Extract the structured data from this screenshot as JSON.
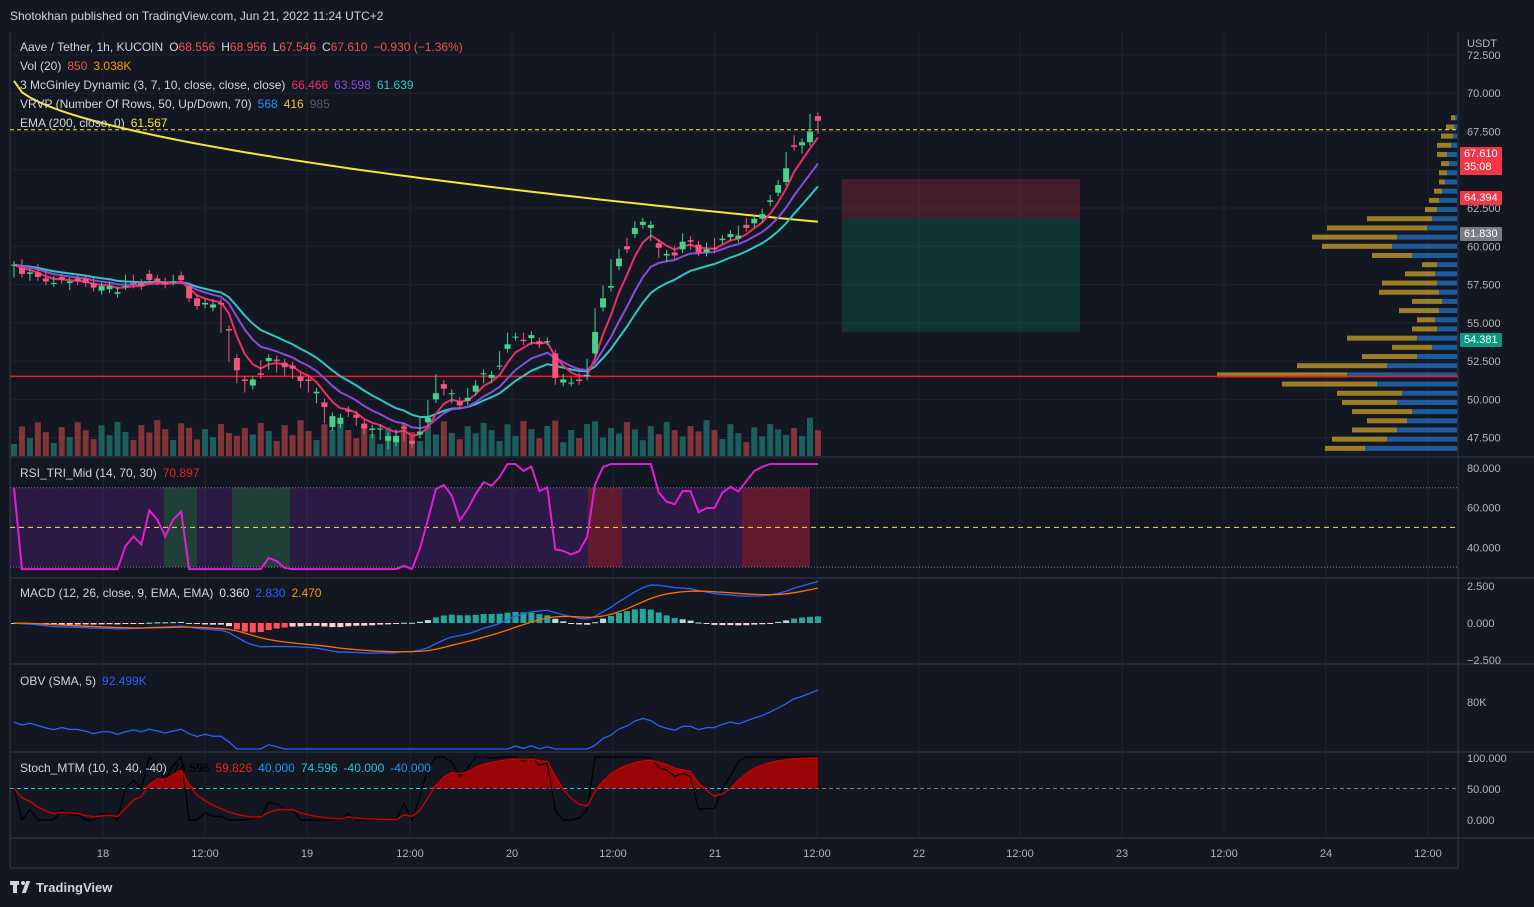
{
  "header": {
    "published": "Shotokhan published on TradingView.com, Jun 21, 2022 11:24 UTC+2"
  },
  "footer": {
    "brand": "TradingView"
  },
  "legend": {
    "symbol": {
      "name": "Aave / Tether, 1h, KUCOIN",
      "o_label": "O",
      "o": "68.556",
      "h_label": "H",
      "h": "68.956",
      "l_label": "L",
      "l": "67.546",
      "c_label": "C",
      "c": "67.610",
      "change": "−0.930 (−1.36%)"
    },
    "vol": {
      "name": "Vol (20)",
      "v1": "850",
      "v2": "3.038K"
    },
    "mcginley": {
      "name": "3 McGinley Dynamic (3, 7, 10, close, close, close)",
      "v1": "66.466",
      "v2": "63.598",
      "v3": "61.639"
    },
    "vrvp": {
      "name": "VRVP (Number Of Rows, 50, Up/Down, 70)",
      "v1": "568",
      "v2": "416",
      "v3": "985"
    },
    "ema": {
      "name": "EMA (200, close, 0)",
      "v1": "61.567"
    },
    "rsi": {
      "name": "RSI_TRI_Mid (14, 70, 30)",
      "v1": "70.897"
    },
    "macd": {
      "name": "MACD (12, 26, close, 9, EMA, EMA)",
      "v1": "0.360",
      "v2": "2.830",
      "v3": "2.470"
    },
    "obv": {
      "name": "OBV (SMA, 5)",
      "v1": "92.499K"
    },
    "stoch": {
      "name": "Stoch_MTM (10, 3, 40, -40)",
      "v1": "74.596",
      "v2": "59.826",
      "v3": "40.000",
      "v4": "74.596",
      "v5": "-40.000",
      "v6": "-40.000"
    }
  },
  "price_badges": {
    "last": "67.610",
    "countdown": "35:08",
    "stop": "64.394",
    "entry": "61.830",
    "target": "54.381"
  },
  "colors": {
    "bg": "#131722",
    "up": "#26a69a",
    "down": "#ef5350",
    "ema": "#f5e63d",
    "mg1": "#ec2d68",
    "mg2": "#8a4bdc",
    "mg3": "#2fc6c8",
    "support": "#f01f1f",
    "rsi": "#e01fd4",
    "macd": "#2962ff",
    "signal": "#ff6d00",
    "obv": "#2962ff"
  },
  "chart_data": {
    "type": "candlestick",
    "price_axis": {
      "unit": "USDT",
      "ticks": [
        "72.500",
        "70.000",
        "67.500",
        "65.000",
        "62.500",
        "60.000",
        "57.500",
        "55.000",
        "52.500",
        "50.000",
        "47.500"
      ],
      "range": [
        46.3,
        74.0
      ]
    },
    "time_axis": {
      "labels": [
        "18",
        "12:00",
        "19",
        "12:00",
        "20",
        "12:00",
        "21",
        "12:00",
        "22",
        "12:00",
        "23",
        "12:00",
        "24",
        "12:00"
      ]
    },
    "support_level": 51.5,
    "current_price": 67.61,
    "position": {
      "type": "short",
      "entry": 61.83,
      "stop": 64.394,
      "target": 54.381
    },
    "candles": [
      [
        58.8,
        58.8,
        58.2
      ],
      [
        58.6,
        58.2,
        58.9
      ],
      [
        58.2,
        58.3,
        58.0
      ],
      [
        58.3,
        58.0,
        58.6
      ],
      [
        57.9,
        57.7,
        58.2
      ],
      [
        57.6,
        57.6,
        57.8
      ],
      [
        58.0,
        57.8,
        57.9
      ],
      [
        57.6,
        57.7,
        57.4
      ],
      [
        57.9,
        57.7,
        57.8
      ],
      [
        57.9,
        57.6,
        57.9
      ],
      [
        57.6,
        57.3,
        57.7
      ],
      [
        57.1,
        57.4,
        57.3
      ],
      [
        57.2,
        57.4,
        57.3
      ],
      [
        56.9,
        57.0,
        57.1
      ],
      [
        57.4,
        57.4,
        57.9
      ],
      [
        57.6,
        57.5,
        57.9
      ],
      [
        57.6,
        57.4,
        57.5
      ],
      [
        58.2,
        57.8,
        57.9
      ],
      [
        57.9,
        57.7,
        57.7
      ],
      [
        57.7,
        57.5,
        57.6
      ],
      [
        57.7,
        57.7,
        57.9
      ],
      [
        58.1,
        57.8,
        58.1
      ],
      [
        57.4,
        56.6,
        56.9
      ],
      [
        56.6,
        56.1,
        56.3
      ],
      [
        56.2,
        56.3,
        56.2
      ],
      [
        56.0,
        56.2,
        56.3
      ],
      [
        56.3,
        56.2,
        54.6
      ],
      [
        54.6,
        54.5,
        52.7
      ],
      [
        52.7,
        51.9,
        51.3
      ],
      [
        51.3,
        51.2,
        50.7
      ],
      [
        50.9,
        51.3,
        50.9
      ],
      [
        51.7,
        51.6,
        52.3
      ],
      [
        52.5,
        52.7,
        52.2
      ],
      [
        52.6,
        52.5,
        52.0
      ],
      [
        52.4,
        52.1,
        51.8
      ],
      [
        52.2,
        52.0,
        51.6
      ],
      [
        51.5,
        51.2,
        51.0
      ],
      [
        51.3,
        51.2,
        50.7
      ],
      [
        50.4,
        50.5,
        50.0
      ],
      [
        49.8,
        49.5,
        48.7
      ],
      [
        48.2,
        48.9,
        48.3
      ],
      [
        48.4,
        48.8,
        48.7
      ],
      [
        49.3,
        49.2,
        49.1
      ],
      [
        49.0,
        48.8,
        48.5
      ],
      [
        48.4,
        48.1,
        48.0
      ],
      [
        48.0,
        48.1,
        47.7
      ],
      [
        48.1,
        48.1,
        47.6
      ],
      [
        47.3,
        47.6,
        47.0
      ],
      [
        47.2,
        47.6,
        47.8
      ],
      [
        48.2,
        48.1,
        47.5
      ],
      [
        47.3,
        47.1,
        47.1
      ],
      [
        47.7,
        47.9,
        48.6
      ],
      [
        48.5,
        48.8,
        49.7
      ],
      [
        50.0,
        50.4,
        51.4
      ],
      [
        51.0,
        50.7,
        50.5
      ],
      [
        50.4,
        50.4,
        50.0
      ],
      [
        49.9,
        49.6,
        49.8
      ],
      [
        49.9,
        50.1,
        50.5
      ],
      [
        50.5,
        50.9,
        51.0
      ],
      [
        51.7,
        51.7,
        51.3
      ],
      [
        51.4,
        51.6,
        51.3
      ],
      [
        52.2,
        52.2,
        52.9
      ],
      [
        53.3,
        53.6,
        54.1
      ],
      [
        54.1,
        54.1,
        54.1
      ],
      [
        53.9,
        53.8,
        54.1
      ],
      [
        54.0,
        54.2,
        53.8
      ],
      [
        53.8,
        53.6,
        53.7
      ],
      [
        53.8,
        53.8,
        53.8
      ],
      [
        53.0,
        51.4,
        51.2
      ],
      [
        51.1,
        51.3,
        51.4
      ],
      [
        51.1,
        51.1,
        51.2
      ],
      [
        51.3,
        51.2,
        51.5
      ],
      [
        51.5,
        51.6,
        52.4
      ],
      [
        53.0,
        54.4,
        55.7
      ],
      [
        56.0,
        56.6,
        57.2
      ],
      [
        57.3,
        57.4,
        58.9
      ],
      [
        58.7,
        59.2,
        59.6
      ],
      [
        60.0,
        59.8,
        60.3
      ],
      [
        60.8,
        61.2,
        61.4
      ],
      [
        61.4,
        61.6,
        61.6
      ],
      [
        61.2,
        61.4,
        60.6
      ],
      [
        60.2,
        59.9,
        59.5
      ],
      [
        59.4,
        59.5,
        59.2
      ],
      [
        59.6,
        59.4,
        59.8
      ],
      [
        59.8,
        60.3,
        60.6
      ],
      [
        60.4,
        60.3,
        60.0
      ],
      [
        60.1,
        59.6,
        59.6
      ],
      [
        59.6,
        59.8,
        60.0
      ],
      [
        59.9,
        59.8,
        60.3
      ],
      [
        60.4,
        60.5,
        60.4
      ],
      [
        60.6,
        60.8,
        60.7
      ],
      [
        60.5,
        60.7,
        61.1
      ],
      [
        61.4,
        61.2,
        61.6
      ],
      [
        61.5,
        61.8,
        61.6
      ],
      [
        61.8,
        62.1,
        62.2
      ],
      [
        62.9,
        63.0,
        63.1
      ],
      [
        63.5,
        64.0,
        64.1
      ],
      [
        64.2,
        65.1,
        65.9
      ],
      [
        66.6,
        66.5,
        67.0
      ],
      [
        66.6,
        66.8,
        66.3
      ],
      [
        66.8,
        67.5,
        68.4
      ],
      [
        68.5,
        68.2,
        67.6
      ]
    ],
    "rsi": {
      "levels": [
        70,
        50,
        30
      ],
      "ticks": [
        "80.000",
        "60.000",
        "40.000"
      ]
    },
    "macd": {
      "ticks": [
        "2.500",
        "0.000",
        "−2.500"
      ]
    },
    "obv": {
      "ticks": [
        "80K"
      ]
    },
    "stoch": {
      "ticks": [
        "100.000",
        "50.000",
        "0.000"
      ]
    }
  }
}
